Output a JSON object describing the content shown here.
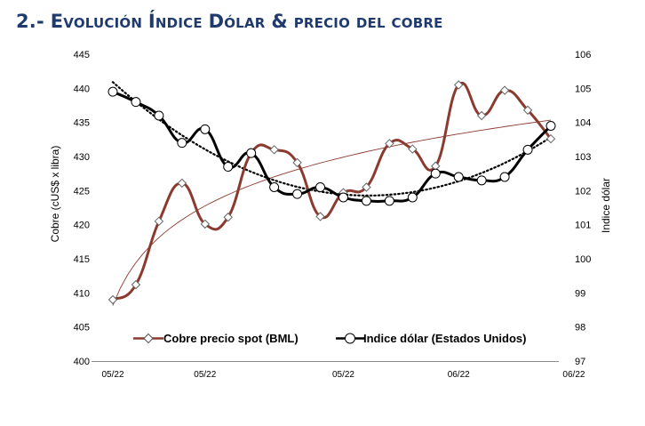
{
  "title": {
    "number": "2.-",
    "words": [
      {
        "initial": "E",
        "rest": "VOLUCIÓN"
      },
      {
        "initial": "Í",
        "rest": "NDICE"
      },
      {
        "initial": "D",
        "rest": "ÓLAR"
      },
      {
        "initial": "&",
        "rest": ""
      },
      {
        "initial": "",
        "rest": "PRECIO"
      },
      {
        "initial": "",
        "rest": "DEL"
      },
      {
        "initial": "",
        "rest": "COBRE"
      }
    ]
  },
  "chart_data": {
    "type": "line",
    "xlabel": "",
    "ylabel": "Cobre (cUS$ x libra)",
    "y2label": "Indice dólar",
    "ylim": [
      400,
      445
    ],
    "y2lim": [
      97,
      106
    ],
    "yticks": [
      "400",
      "405",
      "410",
      "415",
      "420",
      "425",
      "430",
      "435",
      "440",
      "445"
    ],
    "y2ticks": [
      "97",
      "98",
      "99",
      "100",
      "101",
      "102",
      "103",
      "104",
      "105",
      "106"
    ],
    "x_tick_labels": [
      {
        "index": 0,
        "label": "05/22"
      },
      {
        "index": 4,
        "label": "05/22"
      },
      {
        "index": 10,
        "label": "05/22"
      },
      {
        "index": 15,
        "label": "06/22"
      },
      {
        "index": 20,
        "label": "06/22"
      }
    ],
    "grid": false,
    "legend_position": "bottom",
    "series": [
      {
        "name": "Cobre precio spot (BML)",
        "axis": "left",
        "color": "#8b3a2f",
        "marker": "diamond",
        "values": [
          409.0,
          411.2,
          420.5,
          426.1,
          420.1,
          421.1,
          430.5,
          431.0,
          429.1,
          421.2,
          424.7,
          425.5,
          431.9,
          431.1,
          428.6,
          440.5,
          436.0,
          439.7,
          436.8,
          432.6
        ]
      },
      {
        "name": "Indice dólar (Estados Unidos)",
        "axis": "right",
        "color": "#000000",
        "marker": "circle",
        "values": [
          104.9,
          104.6,
          104.2,
          103.4,
          103.8,
          102.7,
          103.1,
          102.1,
          101.9,
          102.1,
          101.8,
          101.7,
          101.7,
          101.8,
          102.5,
          102.4,
          102.3,
          102.4,
          103.2,
          103.9
        ]
      }
    ],
    "trendlines": [
      {
        "name": "cobre-trend",
        "of": "Cobre precio spot (BML)",
        "kind": "logarithmic",
        "style": "solid-thin",
        "color": "#8b3a2f"
      },
      {
        "name": "dolar-trend",
        "of": "Indice dólar (Estados Unidos)",
        "kind": "polynomial",
        "style": "dotted",
        "color": "#000000"
      }
    ]
  }
}
